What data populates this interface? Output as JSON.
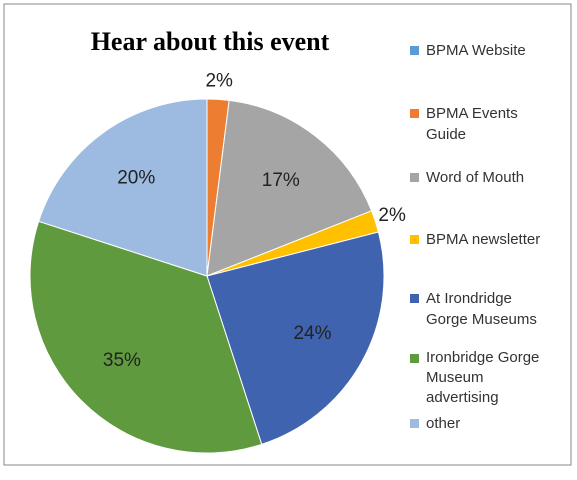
{
  "chart_data": {
    "type": "pie",
    "title": "Hear about this event",
    "categories": [
      "BPMA Website",
      "BPMA Events Guide",
      "Word of Mouth",
      "BPMA newsletter",
      "At Irondridge Gorge Museums",
      "Ironbridge Gorge Museum advertising",
      "other"
    ],
    "values": [
      0,
      2,
      17,
      2,
      24,
      35,
      20
    ],
    "value_labels": [
      null,
      "2%",
      "17%",
      "2%",
      "24%",
      "35%",
      "20%"
    ],
    "colors": [
      "#5b9bd5",
      "#ed7d31",
      "#a5a5a5",
      "#ffc000",
      "#3f63ae",
      "#5f9a3e",
      "#9dbbe0"
    ],
    "legend": "right"
  }
}
